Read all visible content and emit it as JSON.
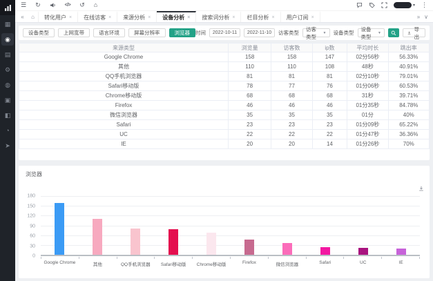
{
  "colors": {
    "accent_teal": "#23a287",
    "sidebar_bg": "#1f2329",
    "tab_active_border": "#30343b"
  },
  "sidebar": {
    "logo_icon": "bar-chart-logo",
    "items": [
      {
        "icon": "dashboard",
        "active": false
      },
      {
        "icon": "monitor",
        "active": true
      },
      {
        "icon": "pages",
        "active": false
      },
      {
        "icon": "settings",
        "active": false
      },
      {
        "icon": "site",
        "active": false
      },
      {
        "icon": "content",
        "active": false
      },
      {
        "icon": "documents",
        "active": false
      },
      {
        "icon": "history",
        "active": false
      },
      {
        "icon": "share",
        "active": false
      }
    ]
  },
  "toolbar": {
    "left_icons": [
      "menu",
      "refresh",
      "announcement",
      "code",
      "sync",
      "home"
    ],
    "right_icons": [
      "comment",
      "tag",
      "fullscreen"
    ],
    "has_avatar": true,
    "kebab_icon": "more-vertical"
  },
  "tabbar": {
    "collapse_icon": "«",
    "home_icon": "⌂",
    "scroll_right_icon": "»",
    "menu_icon": "∨",
    "tabs": [
      {
        "label": "转化用户",
        "active": false
      },
      {
        "label": "在线访客",
        "active": false
      },
      {
        "label": "来源分析",
        "active": false
      },
      {
        "label": "设备分析",
        "active": true
      },
      {
        "label": "搜索词分析",
        "active": false
      },
      {
        "label": "栏目分析",
        "active": false
      },
      {
        "label": "用户订阅",
        "active": false
      }
    ]
  },
  "filters": {
    "buttons": [
      {
        "label": "设备类型",
        "active": false
      },
      {
        "label": "上网宽带",
        "active": false
      },
      {
        "label": "语言环境",
        "active": false
      },
      {
        "label": "屏幕分辨率",
        "active": false
      },
      {
        "label": "浏览器",
        "active": true
      }
    ],
    "time_label": "时间",
    "date_from": "2022-10-11",
    "date_to": "2022-11-10",
    "visitor_type_label": "访客类型",
    "visitor_type_value": "访客类型",
    "device_type_label": "设备类型",
    "device_type_value": "设备类型",
    "export_label": "导出"
  },
  "table": {
    "columns": [
      "来源类型",
      "浏览量",
      "访客数",
      "ip数",
      "平均时长",
      "跳出率"
    ],
    "rows": [
      [
        "Google Chrome",
        "158",
        "158",
        "147",
        "02分56秒",
        "56.33%"
      ],
      [
        "其他",
        "110",
        "110",
        "108",
        "48秒",
        "40.91%"
      ],
      [
        "QQ手机浏览器",
        "81",
        "81",
        "81",
        "02分10秒",
        "79.01%"
      ],
      [
        "Safari移动版",
        "78",
        "77",
        "76",
        "01分06秒",
        "60.53%"
      ],
      [
        "Chrome移动版",
        "68",
        "68",
        "68",
        "31秒",
        "39.71%"
      ],
      [
        "Firefox",
        "46",
        "46",
        "46",
        "01分35秒",
        "84.78%"
      ],
      [
        "微信浏览器",
        "35",
        "35",
        "35",
        "01分",
        "40%"
      ],
      [
        "Safari",
        "23",
        "23",
        "23",
        "01分09秒",
        "65.22%"
      ],
      [
        "UC",
        "22",
        "22",
        "22",
        "01分47秒",
        "36.36%"
      ],
      [
        "IE",
        "20",
        "20",
        "14",
        "01分26秒",
        "70%"
      ]
    ]
  },
  "chart_data": {
    "type": "bar",
    "title": "浏览器",
    "categories": [
      "Google Chrome",
      "其他",
      "QQ手机浏览器",
      "Safari移动版",
      "Chrome移动版",
      "Firefox",
      "微信浏览器",
      "Safari",
      "UC",
      "IE"
    ],
    "values": [
      158,
      110,
      81,
      78,
      68,
      46,
      35,
      23,
      22,
      20
    ],
    "bar_colors": [
      "#3b9bf5",
      "#f7a9bf",
      "#f9c4ce",
      "#e40f4f",
      "#fbe7ee",
      "#c76a8f",
      "#fb6cba",
      "#f318a2",
      "#a9137f",
      "#c763d9"
    ],
    "xlabel": "",
    "ylabel": "",
    "ylim": [
      0,
      180
    ],
    "ytick_step": 30,
    "grid": true,
    "legend": false
  }
}
